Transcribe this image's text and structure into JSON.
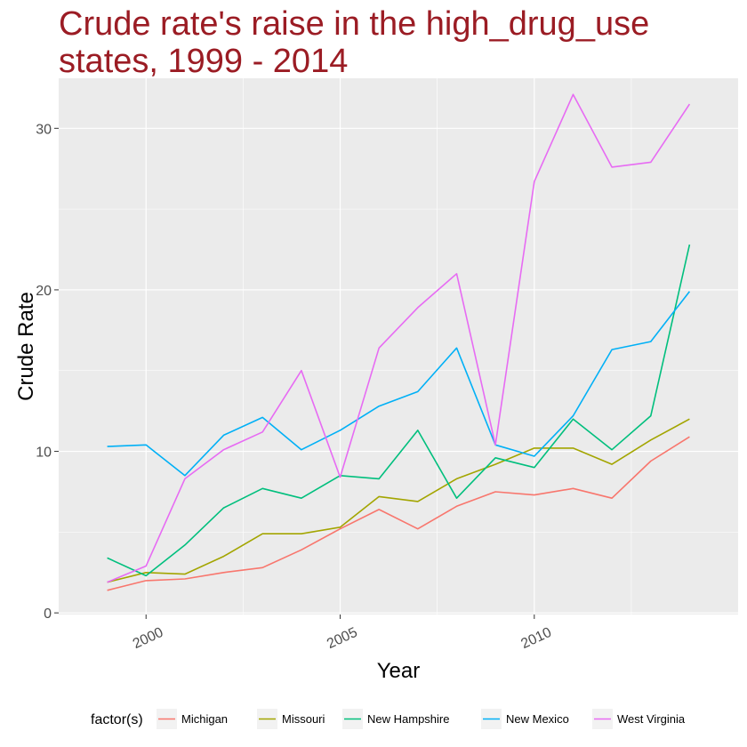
{
  "chart_data": {
    "type": "line",
    "title": "Crude rate's raise in the high_drug_use states, 1999 - 2014",
    "xlabel": "Year",
    "ylabel": "Crude Rate",
    "x": [
      1999,
      2000,
      2001,
      2002,
      2003,
      2004,
      2005,
      2006,
      2007,
      2008,
      2009,
      2010,
      2011,
      2012,
      2013,
      2014
    ],
    "xlim": [
      1997.75,
      2015.25
    ],
    "ylim": [
      -0.1,
      33.1
    ],
    "x_ticks": [
      2000,
      2005,
      2010
    ],
    "x_tick_labels": [
      "2000",
      "2005",
      "2010"
    ],
    "y_ticks": [
      0,
      10,
      20,
      30
    ],
    "y_tick_labels": [
      "0",
      "10",
      "20",
      "30"
    ],
    "grid": true,
    "legend": {
      "title": "factor(s)",
      "placement": "bottom"
    },
    "series": [
      {
        "name": "Michigan",
        "color": "#F8766D",
        "values": [
          1.4,
          2.0,
          2.1,
          2.5,
          2.8,
          3.9,
          5.2,
          6.4,
          5.2,
          6.6,
          7.5,
          7.3,
          7.7,
          7.1,
          9.4,
          10.9
        ]
      },
      {
        "name": "Missouri",
        "color": "#A3A500",
        "values": [
          1.9,
          2.5,
          2.4,
          3.5,
          4.9,
          4.9,
          5.3,
          7.2,
          6.9,
          8.3,
          9.2,
          10.2,
          10.2,
          9.2,
          10.7,
          12.0
        ]
      },
      {
        "name": "New Hampshire",
        "color": "#00BF7D",
        "values": [
          3.4,
          2.3,
          4.2,
          6.5,
          7.7,
          7.1,
          8.5,
          8.3,
          11.3,
          7.1,
          9.6,
          9.0,
          12.0,
          10.1,
          12.2,
          22.8
        ]
      },
      {
        "name": "New Mexico",
        "color": "#00B0F6",
        "values": [
          10.3,
          10.4,
          8.5,
          11.0,
          12.1,
          10.1,
          11.3,
          12.8,
          13.7,
          16.4,
          10.4,
          9.7,
          12.2,
          16.3,
          16.8,
          19.9
        ]
      },
      {
        "name": "West Virginia",
        "color": "#E76BF3",
        "values": [
          1.9,
          2.9,
          8.3,
          10.1,
          11.2,
          15.0,
          8.4,
          16.4,
          18.9,
          21.0,
          10.4,
          26.7,
          32.1,
          27.6,
          27.9,
          31.5
        ]
      }
    ]
  }
}
